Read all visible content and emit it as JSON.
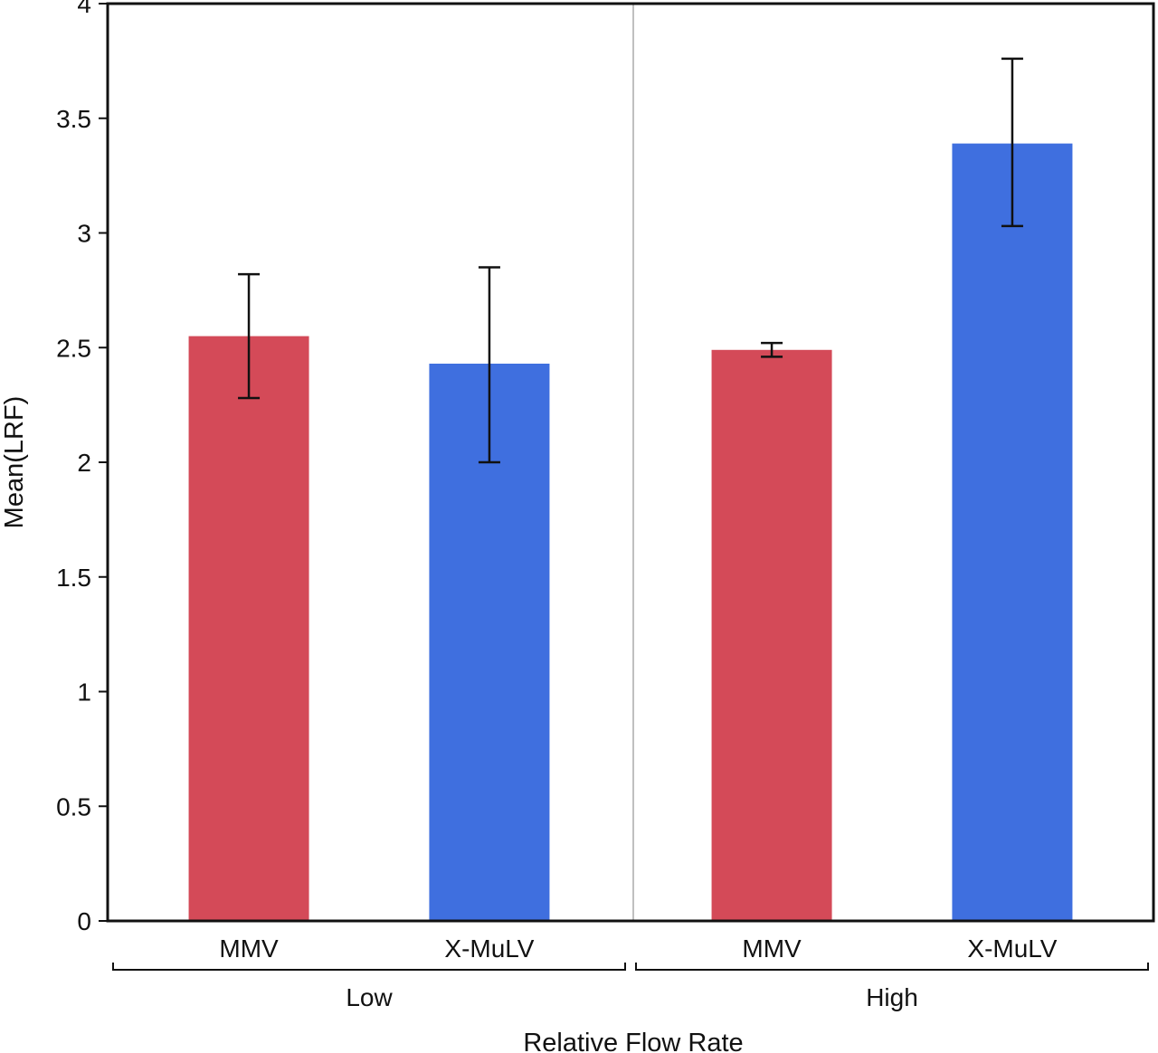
{
  "chart_data": {
    "type": "bar",
    "ylabel": "Mean(LRF)",
    "xlabel": "Relative Flow Rate",
    "ylim": [
      0,
      4
    ],
    "yticks": [
      "0",
      "0.5",
      "1",
      "1.5",
      "2",
      "2.5",
      "3",
      "3.5",
      "4"
    ],
    "grid": false,
    "colors": {
      "MMV": "#d44a58",
      "X-MuLV": "#3f6fdf"
    },
    "groups": [
      {
        "label": "Low",
        "bars": [
          {
            "category": "MMV",
            "value": 2.55,
            "err_low": 2.28,
            "err_high": 2.82
          },
          {
            "category": "X-MuLV",
            "value": 2.43,
            "err_low": 2.0,
            "err_high": 2.85
          }
        ]
      },
      {
        "label": "High",
        "bars": [
          {
            "category": "MMV",
            "value": 2.49,
            "err_low": 2.46,
            "err_high": 2.52
          },
          {
            "category": "X-MuLV",
            "value": 3.39,
            "err_low": 3.03,
            "err_high": 3.76
          }
        ]
      }
    ]
  }
}
